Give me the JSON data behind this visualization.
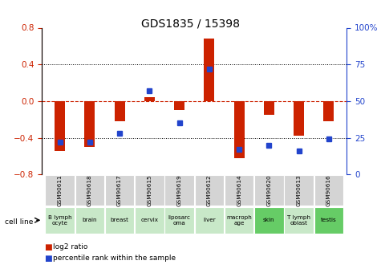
{
  "title": "GDS1835 / 15398",
  "samples": [
    "GSM90611",
    "GSM90618",
    "GSM90617",
    "GSM90615",
    "GSM90619",
    "GSM90612",
    "GSM90614",
    "GSM90620",
    "GSM90613",
    "GSM90616"
  ],
  "cell_lines": [
    "B lymph\nocyte",
    "brain",
    "breast",
    "cervix",
    "liposarc\noma",
    "liver",
    "macroph\nage",
    "skin",
    "T lymph\noblast",
    "testis"
  ],
  "cell_bg": [
    "#c8e8c8",
    "#c8e8c8",
    "#c8e8c8",
    "#c8e8c8",
    "#c8e8c8",
    "#c8e8c8",
    "#c8e8c8",
    "#66cc66",
    "#c8e8c8",
    "#66cc66"
  ],
  "log2_ratio": [
    -0.54,
    -0.5,
    -0.22,
    0.04,
    -0.1,
    0.68,
    -0.62,
    -0.15,
    -0.38,
    -0.22
  ],
  "percentile_rank": [
    22,
    22,
    28,
    57,
    35,
    72,
    17,
    20,
    16,
    24
  ],
  "ylim_left": [
    -0.8,
    0.8
  ],
  "ylim_right": [
    0,
    100
  ],
  "bar_color": "#cc2200",
  "dot_color": "#2244cc",
  "grid_color": "#000000",
  "zero_line_color": "#cc2200",
  "bg_plot": "#ffffff",
  "legend_red": "log2 ratio",
  "legend_blue": "percentile rank within the sample"
}
